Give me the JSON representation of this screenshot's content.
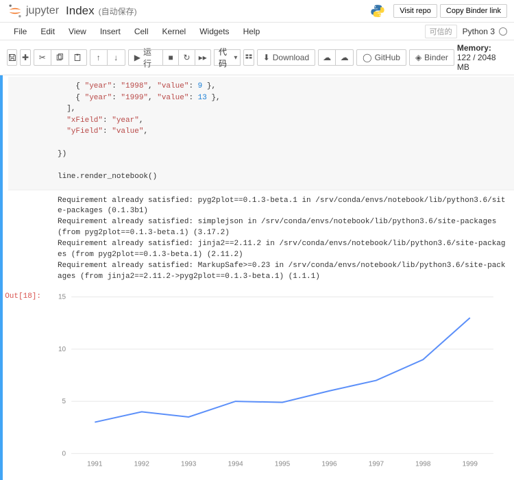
{
  "header": {
    "logo_text": "jupyter",
    "title": "Index",
    "autosave": "(自动保存)",
    "visit_repo": "Visit repo",
    "copy_binder": "Copy Binder link"
  },
  "menu": {
    "items": [
      "File",
      "Edit",
      "View",
      "Insert",
      "Cell",
      "Kernel",
      "Widgets",
      "Help"
    ],
    "trusted": "可信的",
    "kernel_name": "Python 3"
  },
  "toolbar": {
    "run_label": "运行",
    "cell_type": "代码",
    "download": "Download",
    "github": "GitHub",
    "binder": "Binder",
    "memory_label": "Memory:",
    "memory_value": "122 / 2048 MB"
  },
  "code": {
    "l1_a": "    { ",
    "l1_k1": "\"year\"",
    "l1_b": ": ",
    "l1_v1": "\"1998\"",
    "l1_c": ", ",
    "l1_k2": "\"value\"",
    "l1_d": ": ",
    "l1_v2": "9",
    "l1_e": " },",
    "l2_a": "    { ",
    "l2_k1": "\"year\"",
    "l2_b": ": ",
    "l2_v1": "\"1999\"",
    "l2_c": ", ",
    "l2_k2": "\"value\"",
    "l2_d": ": ",
    "l2_v2": "13",
    "l2_e": " },",
    "l3": "  ],",
    "l4_a": "  ",
    "l4_k": "\"xField\"",
    "l4_b": ": ",
    "l4_v": "\"year\"",
    "l4_c": ",",
    "l5_a": "  ",
    "l5_k": "\"yField\"",
    "l5_b": ": ",
    "l5_v": "\"value\"",
    "l5_c": ",",
    "l6": "",
    "l7": "})",
    "l8": "",
    "l9": "line.render_notebook()"
  },
  "stdout": "Requirement already satisfied: pyg2plot==0.1.3-beta.1 in /srv/conda/envs/notebook/lib/python3.6/site-packages (0.1.3b1)\nRequirement already satisfied: simplejson in /srv/conda/envs/notebook/lib/python3.6/site-packages (from pyg2plot==0.1.3-beta.1) (3.17.2)\nRequirement already satisfied: jinja2==2.11.2 in /srv/conda/envs/notebook/lib/python3.6/site-packages (from pyg2plot==0.1.3-beta.1) (2.11.2)\nRequirement already satisfied: MarkupSafe>=0.23 in /srv/conda/envs/notebook/lib/python3.6/site-packages (from jinja2==2.11.2->pyg2plot==0.1.3-beta.1) (1.1.1)",
  "output": {
    "prompt": "Out[18]:"
  },
  "chart": {
    "type": "line",
    "x_labels": [
      "1991",
      "1992",
      "1993",
      "1994",
      "1995",
      "1996",
      "1997",
      "1998",
      "1999"
    ],
    "y_ticks": [
      0,
      5,
      10,
      15
    ],
    "values": [
      3.0,
      4.0,
      3.5,
      5.0,
      4.9,
      6.0,
      7.0,
      9.0,
      13.0
    ],
    "line_color": "#5b8ff9",
    "line_width": 2,
    "grid_color": "#e8e8e8",
    "axis_text_color": "#8c8c8c",
    "background": "#ffffff",
    "ylim": [
      0,
      15
    ],
    "label_fontsize": 10
  }
}
